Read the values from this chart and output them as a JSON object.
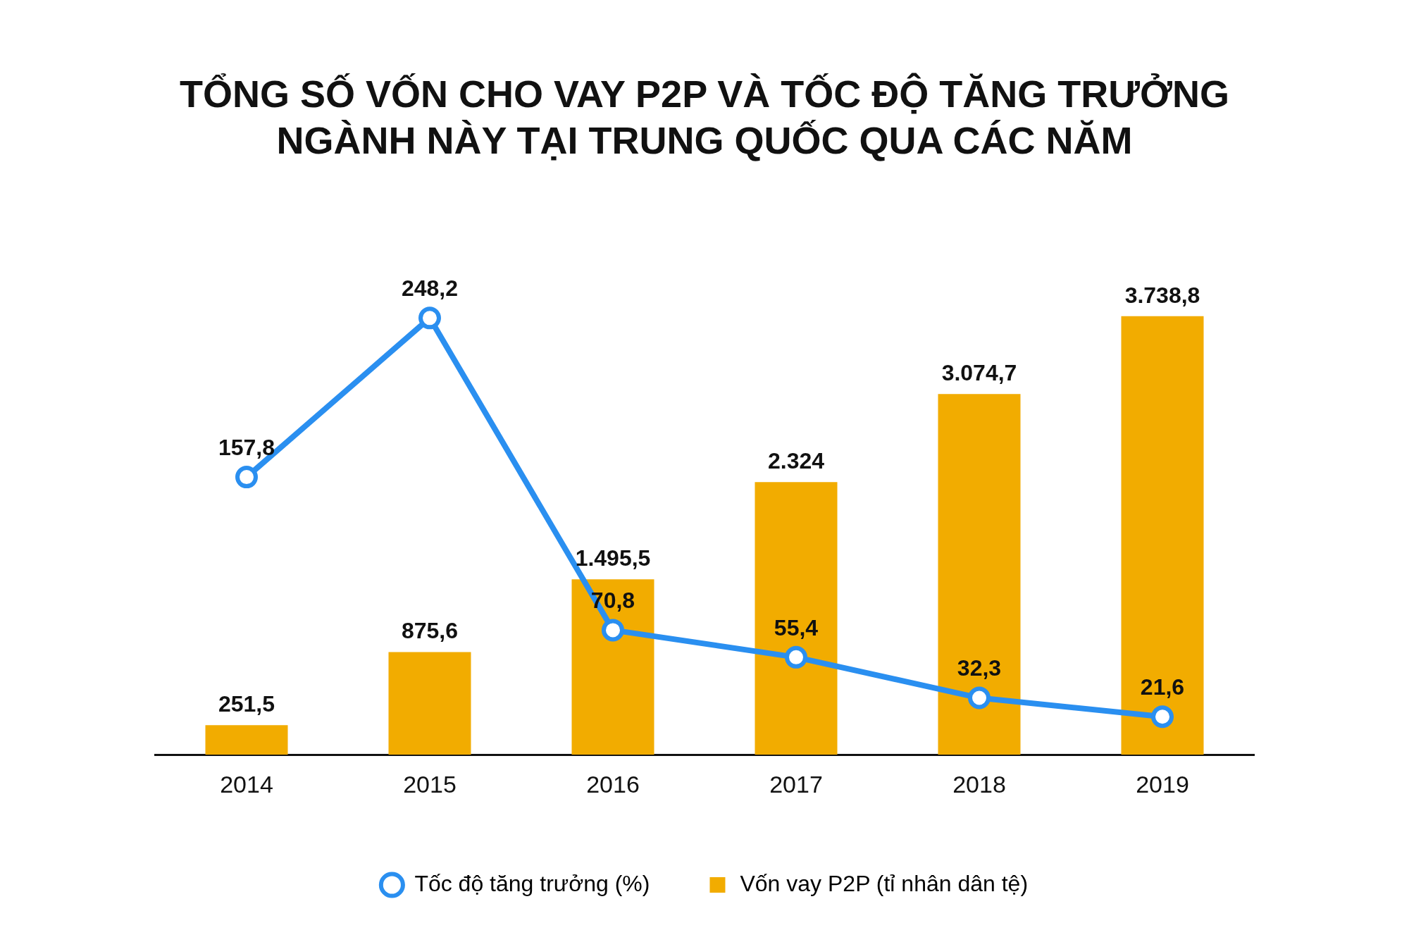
{
  "chart_data": {
    "type": "bar",
    "title": "TỔNG SỐ VỐN CHO VAY P2P VÀ TỐC ĐỘ TĂNG TRƯỞNG NGÀNH NÀY TẠI TRUNG QUỐC QUA CÁC NĂM",
    "categories": [
      "2014",
      "2015",
      "2016",
      "2017",
      "2018",
      "2019"
    ],
    "series": [
      {
        "name": "Tốc độ tăng trưởng (%)",
        "type": "line",
        "axis": "y2",
        "color": "#2a8ff0",
        "values": [
          157.8,
          248.2,
          70.8,
          55.4,
          32.3,
          21.6
        ],
        "value_labels": [
          "157,8",
          "248,2",
          "70,8",
          "55,4",
          "32,3",
          "21,6"
        ]
      },
      {
        "name": "Vốn vay P2P (tỉ nhân dân tệ)",
        "color": "#f2ac00",
        "values": [
          251.5,
          875.6,
          1495.5,
          2324,
          3074.7,
          3738.8
        ],
        "value_labels": [
          "251,5",
          "875,6",
          "1.495,5",
          "2.324",
          "3.074,7",
          "3.738,8"
        ]
      }
    ],
    "tick_labels": "x",
    "grid": false,
    "legend": "bottom",
    "marker": "circle"
  }
}
